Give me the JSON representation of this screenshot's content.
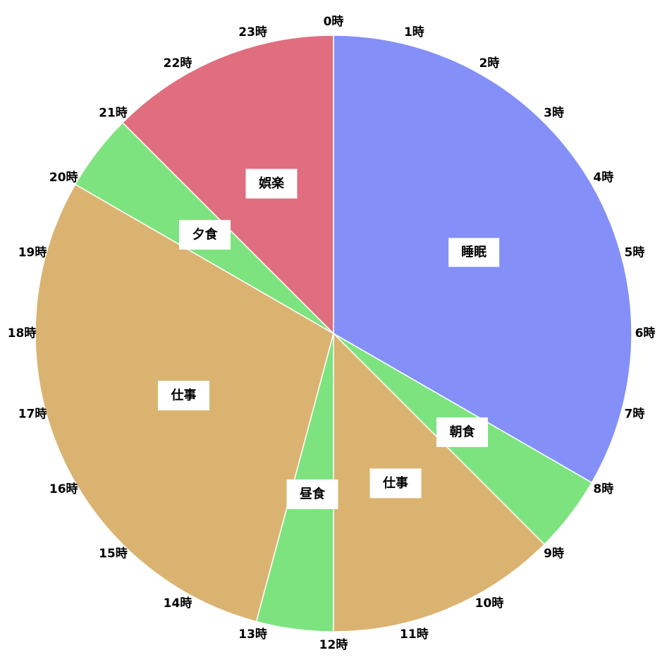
{
  "chart_data": {
    "type": "pie",
    "title": "",
    "unit": "時",
    "hour_labels": [
      "0時",
      "1時",
      "2時",
      "3時",
      "4時",
      "5時",
      "6時",
      "7時",
      "8時",
      "9時",
      "10時",
      "11時",
      "12時",
      "13時",
      "14時",
      "15時",
      "16時",
      "17時",
      "18時",
      "19時",
      "20時",
      "21時",
      "22時",
      "23時"
    ],
    "slices": [
      {
        "label": "睡眠",
        "start": 0,
        "end": 8,
        "hours": 8,
        "color": "#8490f7"
      },
      {
        "label": "朝食",
        "start": 8,
        "end": 9,
        "hours": 1,
        "color": "#7de37f"
      },
      {
        "label": "仕事",
        "start": 9,
        "end": 12,
        "hours": 3,
        "color": "#dbb370"
      },
      {
        "label": "昼食",
        "start": 12,
        "end": 13,
        "hours": 1,
        "color": "#7de37f"
      },
      {
        "label": "仕事",
        "start": 13,
        "end": 20,
        "hours": 7,
        "color": "#dbb370"
      },
      {
        "label": "夕食",
        "start": 20,
        "end": 21,
        "hours": 1,
        "color": "#7de37f"
      },
      {
        "label": "娯楽",
        "start": 21,
        "end": 24,
        "hours": 3,
        "color": "#e06e7e"
      }
    ],
    "legend": "none"
  }
}
